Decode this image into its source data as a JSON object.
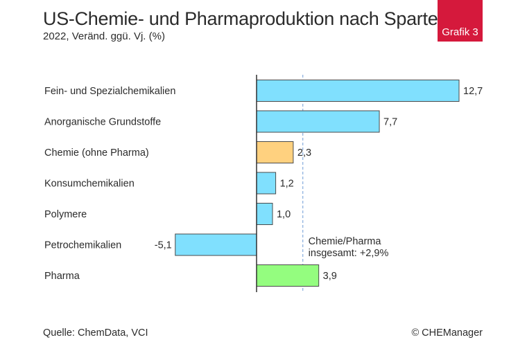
{
  "header": {
    "title": "US-Chemie- und Pharmaproduktion nach Sparten",
    "subtitle": "2022, Veränd. ggü. Vj. (%)",
    "badge": "Grafik 3"
  },
  "footer": {
    "source": "Quelle: ChemData, VCI",
    "copyright": "© CHEManager"
  },
  "colors": {
    "blue": "#80e0fe",
    "orange": "#ffd17f",
    "green": "#94fd7f",
    "badge": "#d5193c",
    "reference_line": "#8fb2e0"
  },
  "chart_data": {
    "type": "bar",
    "orientation": "horizontal",
    "categories": [
      "Fein- und Spezialchemikalien",
      "Anorganische Grundstoffe",
      "Chemie (ohne Pharma)",
      "Konsumchemikalien",
      "Polymere",
      "Petrochemikalien",
      "Pharma"
    ],
    "values": [
      12.7,
      7.7,
      2.3,
      1.2,
      1.0,
      -5.1,
      3.9
    ],
    "value_labels": [
      "12,7",
      "7,7",
      "2,3",
      "1,2",
      "1,0",
      "-5,1",
      "3,9"
    ],
    "bar_colors": [
      "blue",
      "blue",
      "orange",
      "blue",
      "blue",
      "blue",
      "green"
    ],
    "reference_line": {
      "value": 2.9,
      "label_lines": [
        "Chemie/Pharma",
        "insgesamt: +2,9%"
      ],
      "style": "dashed"
    },
    "xlim": [
      -5.1,
      12.7
    ],
    "grid": false
  }
}
